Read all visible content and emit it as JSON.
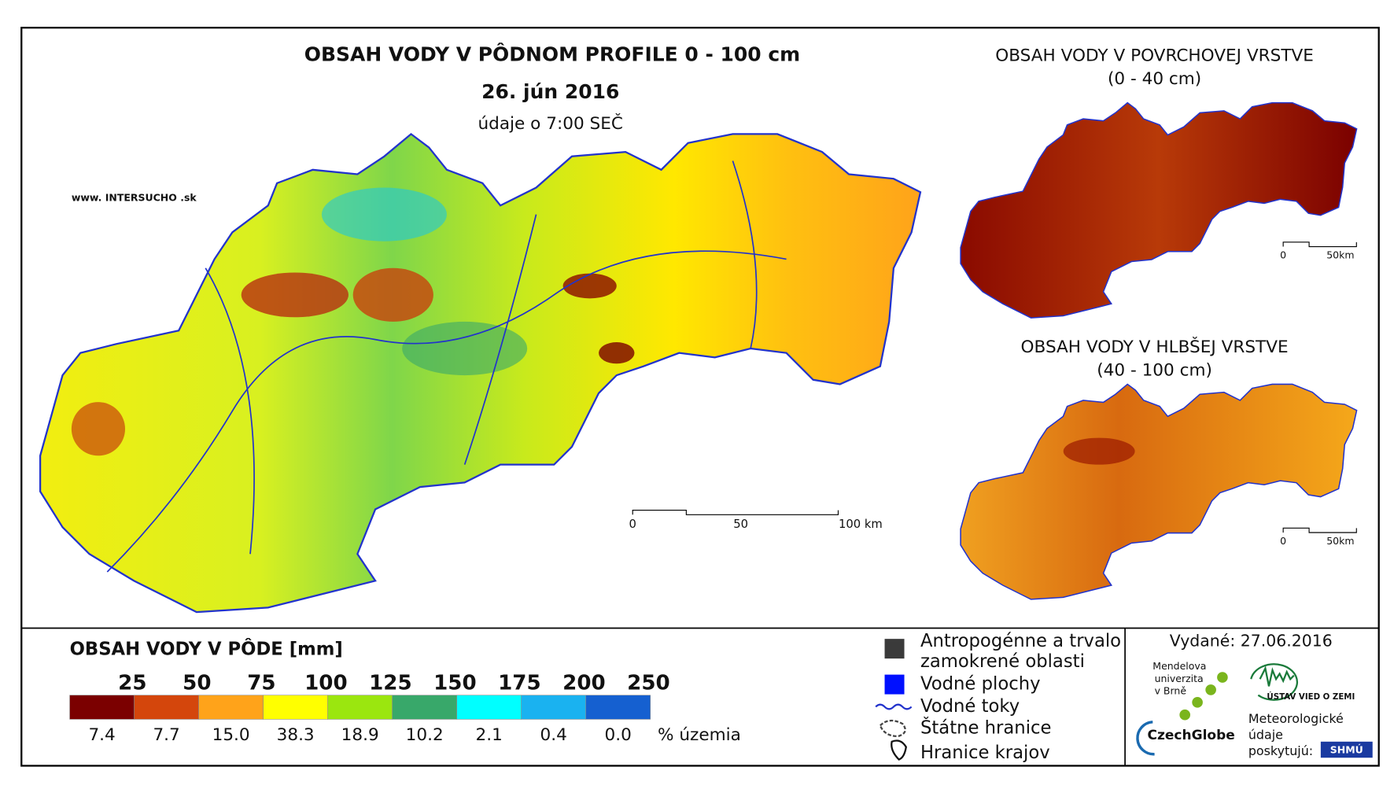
{
  "main_map": {
    "title": "OBSAH VODY V PÔDNOM PROFILE 0 - 100 cm",
    "date": "26. jún 2016",
    "time_note": "údaje o 7:00 SEČ",
    "website": "www. INTERSUCHO .sk",
    "scale_labels": [
      "0",
      "50",
      "100 km"
    ]
  },
  "inset_top": {
    "title": "OBSAH VODY V POVRCHOVEJ VRSTVE",
    "subtitle": "(0 - 40 cm)",
    "scale_labels": [
      "0",
      "50km"
    ]
  },
  "inset_bottom": {
    "title": "OBSAH VODY V HLBŠEJ VRSTVE",
    "subtitle": "(40 - 100 cm)",
    "scale_labels": [
      "0",
      "50km"
    ]
  },
  "legend": {
    "title": "OBSAH VODY V PÔDE [mm]",
    "thresholds": [
      "25",
      "50",
      "75",
      "100",
      "125",
      "150",
      "175",
      "200",
      "250"
    ],
    "classes": [
      {
        "color": "#7b0000",
        "share": "7.4"
      },
      {
        "color": "#d4460c",
        "share": "7.7"
      },
      {
        "color": "#ffa31a",
        "share": "15.0"
      },
      {
        "color": "#ffff00",
        "share": "38.3"
      },
      {
        "color": "#9be60f",
        "share": "18.9"
      },
      {
        "color": "#38a86a",
        "share": "10.2"
      },
      {
        "color": "#00ffff",
        "share": "2.1"
      },
      {
        "color": "#1ab2f0",
        "share": "0.4"
      },
      {
        "color": "#1560d0",
        "share": "0.0"
      }
    ],
    "share_unit": "% územia"
  },
  "symbols": [
    "Antropogénne a trvalo",
    "zamokrené oblasti",
    "Vodné plochy",
    "Vodné toky",
    "Štátne hranice",
    "Hranice krajov"
  ],
  "issued": "Vydané: 27.06.2016",
  "credits": {
    "mendel": [
      "Mendelova",
      "univerzita",
      "v Brně"
    ],
    "czechglobe": "CzechGlobe",
    "ustav": "ÚSTAV VIED O ZEMI",
    "meteo": [
      "Meteorologické",
      "údaje",
      "poskytujú:"
    ],
    "shmu": "SHMÚ"
  }
}
